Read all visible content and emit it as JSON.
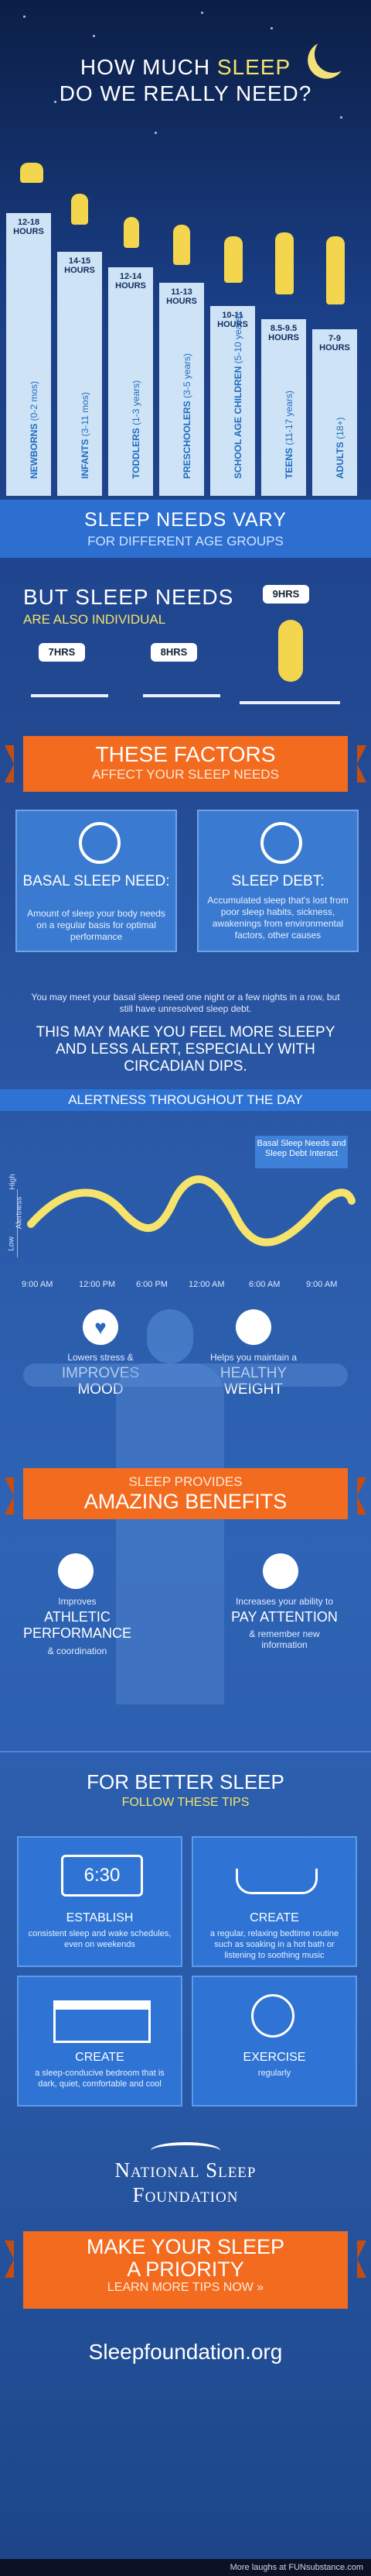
{
  "title": {
    "line1_pre": "HOW MUCH ",
    "line1_accent": "SLEEP",
    "line2": "DO WE REALLY NEED?"
  },
  "bars": [
    {
      "hours": "12-18 HOURS",
      "group": "NEWBORNS",
      "range": "(0-2 mos)",
      "hours_value": [
        12,
        18
      ]
    },
    {
      "hours": "14-15 HOURS",
      "group": "INFANTS",
      "range": "(3-11 mos)",
      "hours_value": [
        14,
        15
      ]
    },
    {
      "hours": "12-14 HOURS",
      "group": "TODDLERS",
      "range": "(1-3 years)",
      "hours_value": [
        12,
        14
      ]
    },
    {
      "hours": "11-13 HOURS",
      "group": "PRESCHOOLERS",
      "range": "(3-5 years)",
      "hours_value": [
        11,
        13
      ]
    },
    {
      "hours": "10-11 HOURS",
      "group": "SCHOOL AGE CHILDREN",
      "range": "(5-10 years)",
      "hours_value": [
        10,
        11
      ]
    },
    {
      "hours": "8.5-9.5 HOURS",
      "group": "TEENS",
      "range": "(11-17 years)",
      "hours_value": [
        8.5,
        9.5
      ]
    },
    {
      "hours": "7-9 HOURS",
      "group": "ADULTS",
      "range": "(18+)",
      "hours_value": [
        7,
        9
      ]
    }
  ],
  "band": {
    "line1": "SLEEP NEEDS VARY",
    "line2": "FOR DIFFERENT AGE GROUPS"
  },
  "individual": {
    "line1": "BUT SLEEP NEEDS",
    "line2": "ARE ALSO INDIVIDUAL",
    "clocks": [
      "7HRS",
      "8HRS",
      "9HRS"
    ]
  },
  "factors": {
    "line1": "THESE FACTORS",
    "line2": "AFFECT YOUR SLEEP NEEDS"
  },
  "cards": [
    {
      "title": "BASAL SLEEP NEED:",
      "text": "Amount of sleep your body needs on a regular basis for optimal performance"
    },
    {
      "title": "SLEEP DEBT:",
      "text": "Accumulated sleep that's lost from poor sleep habits, sickness, awakenings from environmental factors, other causes"
    }
  ],
  "meet": {
    "small": "You may meet your basal sleep need one night or a few nights in a row, but still have unresolved sleep debt.",
    "big": "THIS MAY MAKE YOU FEEL MORE SLEEPY AND LESS ALERT, ESPECIALLY WITH CIRCADIAN DIPS."
  },
  "alertness": {
    "title": "ALERTNESS THROUGHOUT THE DAY",
    "callout": "Basal Sleep Needs and Sleep Debt Interact",
    "ylabel": "Alertness",
    "high": "High",
    "low": "Low",
    "times": [
      "9:00 AM",
      "12:00 PM",
      "6:00 PM",
      "12:00 AM",
      "6:00 AM",
      "9:00 AM"
    ]
  },
  "benefits_top": [
    {
      "pre": "Lowers stress &",
      "big": "IMPROVES MOOD"
    },
    {
      "pre": "Helps you maintain a",
      "big": "HEALTHY WEIGHT"
    }
  ],
  "benefits_ribbon": {
    "line1": "SLEEP PROVIDES",
    "line2": "AMAZING BENEFITS"
  },
  "benefits_bottom": [
    {
      "pre": "Improves",
      "big": "ATHLETIC PERFORMANCE",
      "post": "& coordination"
    },
    {
      "pre": "Increases your ability to",
      "big": "PAY ATTENTION",
      "post": "& remember new information"
    }
  ],
  "tips_header": {
    "line1": "FOR BETTER SLEEP",
    "line2": "FOLLOW THESE TIPS"
  },
  "tips": [
    {
      "title": "ESTABLISH",
      "text": "consistent sleep and wake schedules, even on weekends",
      "display": "6:30"
    },
    {
      "title": "CREATE",
      "text": "a regular, relaxing bedtime routine such as soaking in a hot bath or listening to soothing music"
    },
    {
      "title": "CREATE",
      "text": "a sleep-conducive bedroom that is dark, quiet, comfortable and cool"
    },
    {
      "title": "EXERCISE",
      "text": "regularly"
    }
  ],
  "nsf": {
    "line1": "National Sleep",
    "line2": "Foundation"
  },
  "cta": {
    "line1": "MAKE YOUR SLEEP",
    "line2": "A PRIORITY",
    "line3": "LEARN MORE TIPS NOW »"
  },
  "site": "Sleepfoundation.org",
  "footer": "More laughs at FUNsubstance.com",
  "colors": {
    "accent": "#f6e36b",
    "orange": "#f36b1f",
    "blue_band": "#2c6fd1",
    "bar": "#cfe3f6"
  }
}
